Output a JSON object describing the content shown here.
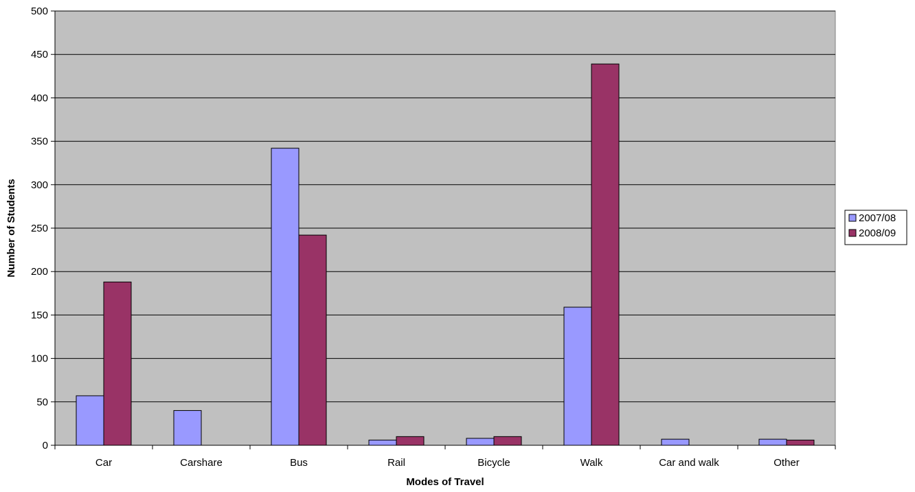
{
  "chart_data": {
    "type": "bar",
    "title": "",
    "xlabel": "Modes of Travel",
    "ylabel": "Number of Students",
    "categories": [
      "Car",
      "Carshare",
      "Bus",
      "Rail",
      "Bicycle",
      "Walk",
      "Car and walk",
      "Other"
    ],
    "series": [
      {
        "name": "2007/08",
        "color": "#9999ff",
        "values": [
          57,
          40,
          342,
          6,
          8,
          159,
          7,
          7
        ]
      },
      {
        "name": "2008/09",
        "color": "#993366",
        "values": [
          188,
          0,
          242,
          10,
          10,
          439,
          0,
          6
        ]
      }
    ],
    "ylim": [
      0,
      500
    ],
    "yticks": [
      0,
      50,
      100,
      150,
      200,
      250,
      300,
      350,
      400,
      450,
      500
    ],
    "grid": true,
    "plot_background": "#c0c0c0",
    "legend_position": "right"
  }
}
